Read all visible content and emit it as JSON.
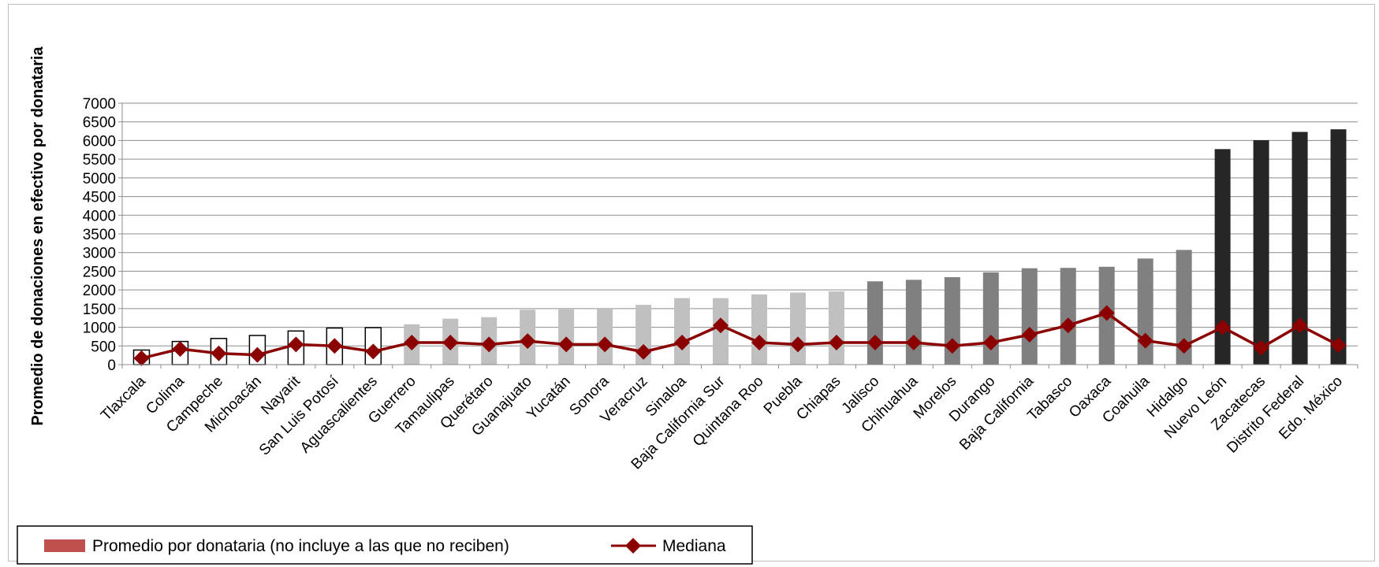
{
  "chart_data": {
    "type": "bar",
    "ylabel": "Promedio de donaciones en efectivo por donataria",
    "xlabel": "",
    "ylim": [
      0,
      7000
    ],
    "yticks": [
      0,
      500,
      1000,
      1500,
      2000,
      2500,
      3000,
      3500,
      4000,
      4500,
      5000,
      5500,
      6000,
      6500,
      7000
    ],
    "grid": true,
    "legend_position": "bottom-left",
    "categories": [
      "Tlaxcala",
      "Colima",
      "Campeche",
      "Michoacán",
      "Nayarit",
      "San Luis Potosí",
      "Aguascalientes",
      "Guerrero",
      "Tamaulipas",
      "Querétaro",
      "Guanajuato",
      "Yucatán",
      "Sonora",
      "Veracruz",
      "Sinaloa",
      "Baja California Sur",
      "Quintana Roo",
      "Puebla",
      "Chiapas",
      "Jalisco",
      "Chihuahua",
      "Morelos",
      "Durango",
      "Baja California",
      "Tabasco",
      "Oaxaca",
      "Coahuila",
      "Hidalgo",
      "Nuevo León",
      "Zacatecas",
      "Distrito Federal",
      "Edo. México"
    ],
    "bar_groups": [
      "outline",
      "outline",
      "outline",
      "outline",
      "outline",
      "outline",
      "outline",
      "light",
      "light",
      "light",
      "light",
      "light",
      "light",
      "light",
      "light",
      "light",
      "light",
      "light",
      "light",
      "medium",
      "medium",
      "medium",
      "medium",
      "medium",
      "medium",
      "medium",
      "medium",
      "medium",
      "dark",
      "dark",
      "dark",
      "dark"
    ],
    "group_colors": {
      "outline": "#ffffff",
      "light": "#c0c0c0",
      "medium": "#808080",
      "dark": "#262626"
    },
    "series": [
      {
        "name": "Promedio por donataria (no incluye a las que no reciben)",
        "type": "bar",
        "legend_color": "#c0504d",
        "values": [
          390,
          620,
          700,
          780,
          900,
          980,
          990,
          1080,
          1230,
          1270,
          1470,
          1480,
          1500,
          1600,
          1780,
          1780,
          1880,
          1930,
          1960,
          2230,
          2270,
          2340,
          2470,
          2580,
          2590,
          2620,
          2840,
          3070,
          5770,
          6010,
          6230,
          6300
        ]
      },
      {
        "name": "Mediana",
        "type": "line",
        "color": "#8b0000",
        "values": [
          170,
          420,
          300,
          260,
          540,
          500,
          350,
          590,
          590,
          540,
          630,
          540,
          540,
          340,
          590,
          1050,
          590,
          540,
          590,
          590,
          590,
          500,
          590,
          800,
          1050,
          1380,
          640,
          500,
          1000,
          450,
          1050,
          520
        ]
      }
    ]
  }
}
